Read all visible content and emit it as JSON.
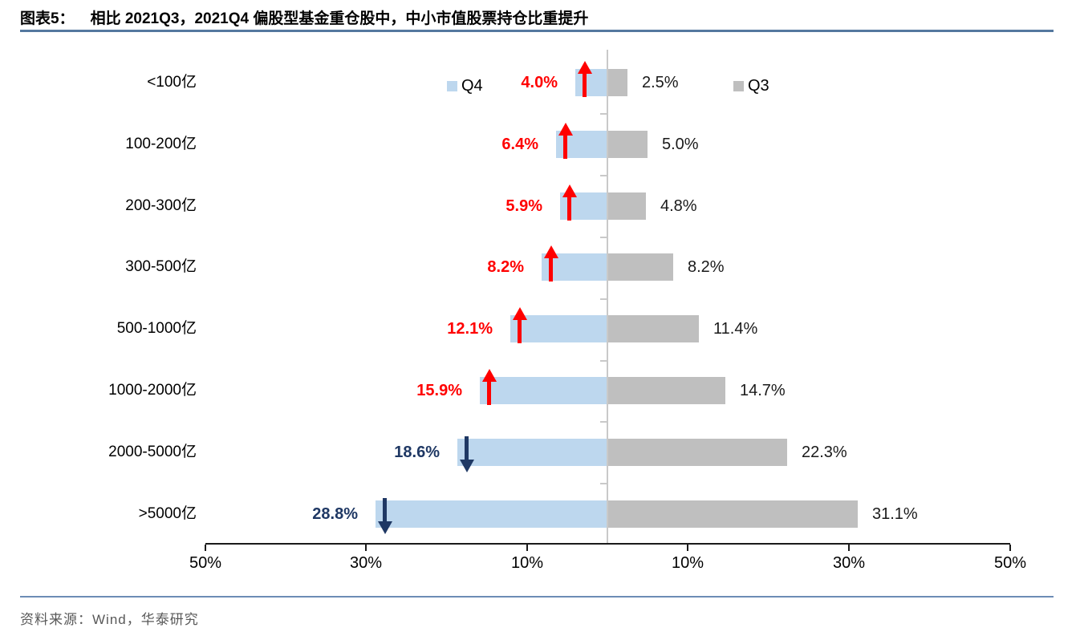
{
  "figure": {
    "label": "图表5：",
    "title": "相比 2021Q3，2021Q4 偏股型基金重仓股中，中小市值股票持仓比重提升",
    "source": "资料来源：Wind，华泰研究"
  },
  "chart_data": {
    "type": "bar",
    "subtype": "butterfly-tornado",
    "orientation": "horizontal",
    "title": "相比 2021Q3，2021Q4 偏股型基金重仓股中，中小市值股票持仓比重提升",
    "categories": [
      "<100亿",
      "100-200亿",
      "200-300亿",
      "300-500亿",
      "500-1000亿",
      "1000-2000亿",
      "2000-5000亿",
      ">5000亿"
    ],
    "series": [
      {
        "name": "Q4",
        "side": "left",
        "color": "#BDD7EE",
        "values": [
          4.0,
          6.4,
          5.9,
          8.2,
          12.1,
          15.9,
          18.6,
          28.8
        ]
      },
      {
        "name": "Q3",
        "side": "right",
        "color": "#BFBFBF",
        "values": [
          2.5,
          5.0,
          4.8,
          8.2,
          11.4,
          14.7,
          22.3,
          31.1
        ]
      }
    ],
    "value_labels": {
      "q4": [
        "4.0%",
        "6.4%",
        "5.9%",
        "8.2%",
        "12.1%",
        "15.9%",
        "18.6%",
        "28.8%"
      ],
      "q3": [
        "2.5%",
        "5.0%",
        "4.8%",
        "8.2%",
        "11.4%",
        "14.7%",
        "22.3%",
        "31.1%"
      ]
    },
    "change_direction": [
      "up",
      "up",
      "up",
      "up",
      "up",
      "up",
      "down",
      "down"
    ],
    "legend": [
      {
        "label": "Q4",
        "color": "#BDD7EE"
      },
      {
        "label": "Q3",
        "color": "#BFBFBF"
      }
    ],
    "legend_position": "inline-top",
    "xlim": [
      -50,
      50
    ],
    "axis_tick_values": [
      -50,
      -30,
      -10,
      10,
      30,
      50
    ],
    "axis_tick_labels": [
      "50%",
      "30%",
      "10%",
      "10%",
      "30%",
      "50%"
    ],
    "grid": false,
    "colors": {
      "up_accent": "#FF0000",
      "down_accent": "#1F3864",
      "bar_q4": "#BDD7EE",
      "bar_q3": "#BFBFBF",
      "axis": "#1a1a1a",
      "center_line": "#C9C9C9"
    }
  }
}
